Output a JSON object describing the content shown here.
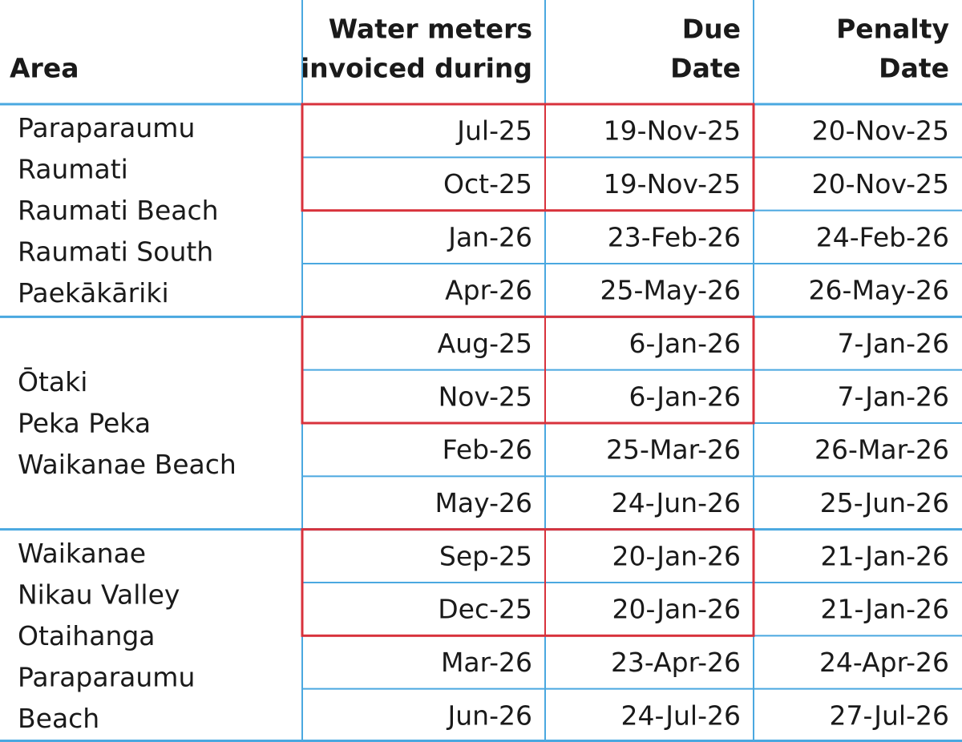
{
  "table": {
    "header": {
      "area": "Area",
      "invoiced": [
        "Water meters",
        "invoiced during"
      ],
      "due": [
        "Due",
        "Date"
      ],
      "penalty": [
        "Penalty",
        "Date"
      ]
    },
    "groups": [
      {
        "areas": [
          "Paraparaumu",
          "Raumati",
          "Raumati Beach",
          "Raumati South",
          "Paekākāriki"
        ],
        "rows": [
          [
            "Jul-25",
            "19-Nov-25",
            "20-Nov-25"
          ],
          [
            "Oct-25",
            "19-Nov-25",
            "20-Nov-25"
          ],
          [
            "Jan-26",
            "23-Feb-26",
            "24-Feb-26"
          ],
          [
            "Apr-26",
            "25-May-26",
            "26-May-26"
          ]
        ]
      },
      {
        "areas": [
          "Ōtaki",
          "Peka Peka",
          "Waikanae Beach"
        ],
        "rows": [
          [
            "Aug-25",
            "6-Jan-26",
            "7-Jan-26"
          ],
          [
            "Nov-25",
            "6-Jan-26",
            "7-Jan-26"
          ],
          [
            "Feb-26",
            "25-Mar-26",
            "26-Mar-26"
          ],
          [
            "May-26",
            "24-Jun-26",
            "25-Jun-26"
          ]
        ]
      },
      {
        "areas": [
          "Waikanae",
          "Nikau Valley",
          "Otaihanga",
          "Paraparaumu",
          "Beach"
        ],
        "rows": [
          [
            "Sep-25",
            "20-Jan-26",
            "21-Jan-26"
          ],
          [
            "Dec-25",
            "20-Jan-26",
            "21-Jan-26"
          ],
          [
            "Mar-26",
            "23-Apr-26",
            "24-Apr-26"
          ],
          [
            "Jun-26",
            "24-Jul-26",
            "27-Jul-26"
          ]
        ]
      }
    ]
  }
}
